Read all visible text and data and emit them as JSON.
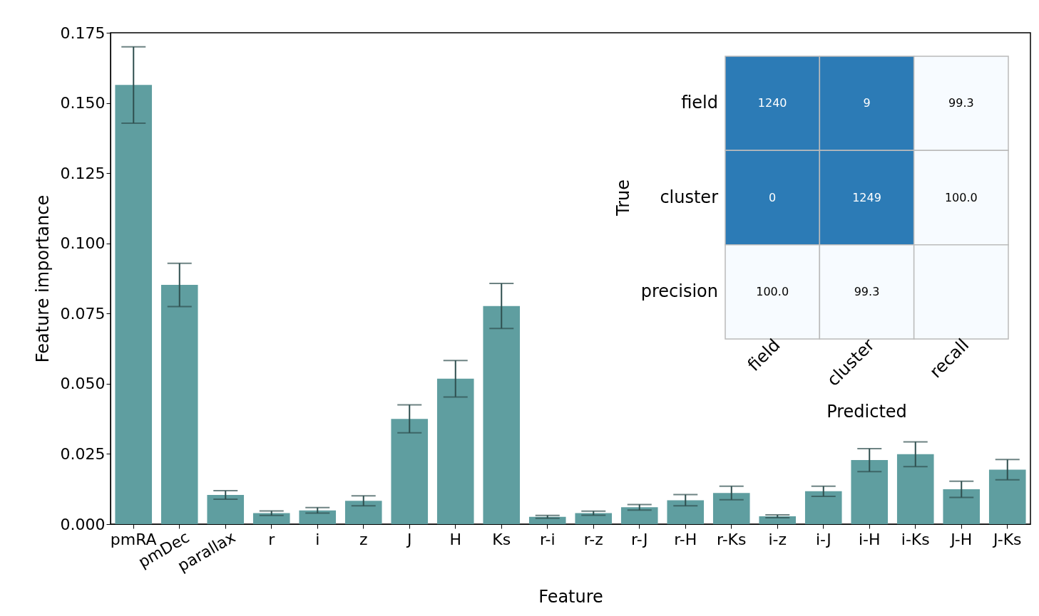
{
  "chart_data": [
    {
      "type": "bar",
      "xlabel": "Feature",
      "ylabel": "Feature importance",
      "categories": [
        "pmRA",
        "pmDec",
        "parallax",
        "r",
        "i",
        "z",
        "J",
        "H",
        "Ks",
        "r-i",
        "r-z",
        "r-J",
        "r-H",
        "r-Ks",
        "i-z",
        "i-J",
        "i-H",
        "i-Ks",
        "J-H",
        "J-Ks"
      ],
      "values": [
        0.1564,
        0.0852,
        0.0104,
        0.0039,
        0.0049,
        0.0083,
        0.0375,
        0.0518,
        0.0777,
        0.0026,
        0.0039,
        0.006,
        0.0085,
        0.0111,
        0.0028,
        0.0117,
        0.0228,
        0.0249,
        0.0124,
        0.0194
      ],
      "errors": [
        0.0136,
        0.0077,
        0.0015,
        0.0008,
        0.001,
        0.0018,
        0.005,
        0.0065,
        0.008,
        0.0005,
        0.0007,
        0.001,
        0.002,
        0.0024,
        0.0005,
        0.0018,
        0.0041,
        0.0044,
        0.0029,
        0.0036
      ],
      "color": "#5f9ea0",
      "ylim": [
        0,
        0.175
      ],
      "yticks": [
        {
          "value": 0,
          "label": "0.000"
        },
        {
          "value": 0.025,
          "label": "0.025"
        },
        {
          "value": 0.05,
          "label": "0.050"
        },
        {
          "value": 0.075,
          "label": "0.075"
        },
        {
          "value": 0.1,
          "label": "0.100"
        },
        {
          "value": 0.125,
          "label": "0.125"
        },
        {
          "value": 0.15,
          "label": "0.150"
        },
        {
          "value": 0.175,
          "label": "0.175"
        }
      ],
      "grid": false
    },
    {
      "type": "heatmap",
      "xlabel": "Predicted",
      "ylabel": "True",
      "categories": [
        "field",
        "cluster",
        "recall"
      ],
      "y_categories": [
        "field",
        "cluster",
        "precision"
      ],
      "cells": [
        [
          1240,
          9,
          99.3
        ],
        [
          0,
          1249,
          100.0
        ],
        [
          100.0,
          99.3,
          null
        ]
      ],
      "cell_labels": [
        [
          "1240",
          "9",
          "99.3"
        ],
        [
          "0",
          "1249",
          "100.0"
        ],
        [
          "100.0",
          "99.3",
          null
        ]
      ],
      "colors": [
        "#2c7bb6",
        "#f7fbff"
      ]
    }
  ]
}
